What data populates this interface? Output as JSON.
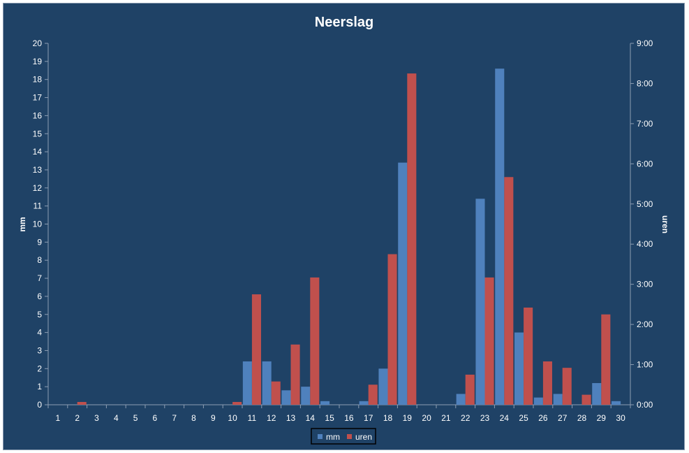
{
  "chart_data": {
    "type": "bar",
    "title": "Neerslag",
    "ylabel": "mm",
    "y2label": "uren",
    "ylim": [
      0,
      20
    ],
    "y2lim": [
      0,
      9
    ],
    "yticks": [
      "0",
      "1",
      "2",
      "3",
      "4",
      "5",
      "6",
      "7",
      "8",
      "9",
      "10",
      "11",
      "12",
      "13",
      "14",
      "15",
      "16",
      "17",
      "18",
      "19",
      "20"
    ],
    "y2ticks": [
      "0:00",
      "1:00",
      "2:00",
      "3:00",
      "4:00",
      "5:00",
      "6:00",
      "7:00",
      "8:00",
      "9:00"
    ],
    "categories": [
      "1",
      "2",
      "3",
      "4",
      "5",
      "6",
      "7",
      "8",
      "9",
      "10",
      "11",
      "12",
      "13",
      "14",
      "15",
      "16",
      "17",
      "18",
      "19",
      "20",
      "21",
      "22",
      "23",
      "24",
      "25",
      "26",
      "27",
      "28",
      "29",
      "30"
    ],
    "series": [
      {
        "name": "mm",
        "axis": "left",
        "color": "#4f81bd",
        "values": [
          0,
          0,
          0,
          0,
          0,
          0,
          0,
          0,
          0,
          0,
          2.4,
          2.4,
          0.8,
          1.0,
          0.2,
          0,
          0.2,
          2.0,
          13.4,
          0,
          0,
          0.6,
          11.4,
          18.6,
          4.0,
          0.4,
          0.6,
          0,
          1.2,
          0.2
        ]
      },
      {
        "name": "uren",
        "axis": "right",
        "unit": "hours",
        "color": "#c0504d",
        "values": [
          0,
          0.07,
          0,
          0,
          0,
          0,
          0,
          0,
          0,
          0.07,
          2.75,
          0.58,
          1.5,
          3.17,
          0,
          0,
          0.5,
          3.75,
          8.25,
          0,
          0,
          0.75,
          3.17,
          5.67,
          2.42,
          1.08,
          0.92,
          0.25,
          2.25,
          0
        ]
      }
    ],
    "legend_position": "bottom",
    "grid": false
  }
}
